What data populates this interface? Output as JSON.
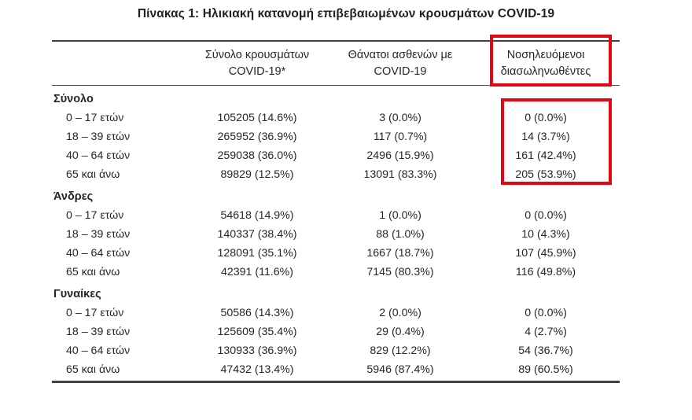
{
  "title": "Πίνακας 1: Ηλικιακή κατανομή επιβεβαιωμένων κρουσμάτων COVID-19",
  "highlight": {
    "color": "#e30613"
  },
  "table": {
    "col_headers": [
      {
        "line1": "Σύνολο κρουσμάτων",
        "line2": "COVID-19*"
      },
      {
        "line1": "Θάνατοι ασθενών με",
        "line2": "COVID-19"
      },
      {
        "line1": "Νοσηλευόμενοι",
        "line2": "διασωληνωθέντες"
      }
    ],
    "sections": [
      {
        "label": "Σύνολο",
        "rows": [
          {
            "label": "0 – 17 ετών",
            "cases": "105205 (14.6%)",
            "deaths": "3 (0.0%)",
            "intubated": "0 (0.0%)"
          },
          {
            "label": "18 – 39 ετών",
            "cases": "265952 (36.9%)",
            "deaths": "117 (0.7%)",
            "intubated": "14 (3.7%)"
          },
          {
            "label": "40 – 64 ετών",
            "cases": "259038 (36.0%)",
            "deaths": "2496 (15.9%)",
            "intubated": "161 (42.4%)"
          },
          {
            "label": "65 και άνω",
            "cases": "89829 (12.5%)",
            "deaths": "13091 (83.3%)",
            "intubated": "205 (53.9%)"
          }
        ]
      },
      {
        "label": "Άνδρες",
        "rows": [
          {
            "label": "0 – 17 ετών",
            "cases": "54618 (14.9%)",
            "deaths": "1 (0.0%)",
            "intubated": "0 (0.0%)"
          },
          {
            "label": "18 – 39 ετών",
            "cases": "140337 (38.4%)",
            "deaths": "88 (1.0%)",
            "intubated": "10 (4.3%)"
          },
          {
            "label": "40 – 64 ετών",
            "cases": "128091 (35.1%)",
            "deaths": "1667 (18.7%)",
            "intubated": "107 (45.9%)"
          },
          {
            "label": "65 και άνω",
            "cases": "42391 (11.6%)",
            "deaths": "7145 (80.3%)",
            "intubated": "116 (49.8%)"
          }
        ]
      },
      {
        "label": "Γυναίκες",
        "rows": [
          {
            "label": "0 – 17 ετών",
            "cases": "50586 (14.3%)",
            "deaths": "2 (0.0%)",
            "intubated": "0 (0.0%)"
          },
          {
            "label": "18 – 39 ετών",
            "cases": "125609 (35.4%)",
            "deaths": "29 (0.4%)",
            "intubated": "4 (2.7%)"
          },
          {
            "label": "40 – 64 ετών",
            "cases": "130933 (36.9%)",
            "deaths": "829 (12.2%)",
            "intubated": "54 (36.7%)"
          },
          {
            "label": "65 και άνω",
            "cases": "47432 (13.4%)",
            "deaths": "5946 (87.4%)",
            "intubated": "89 (60.5%)"
          }
        ]
      }
    ]
  }
}
